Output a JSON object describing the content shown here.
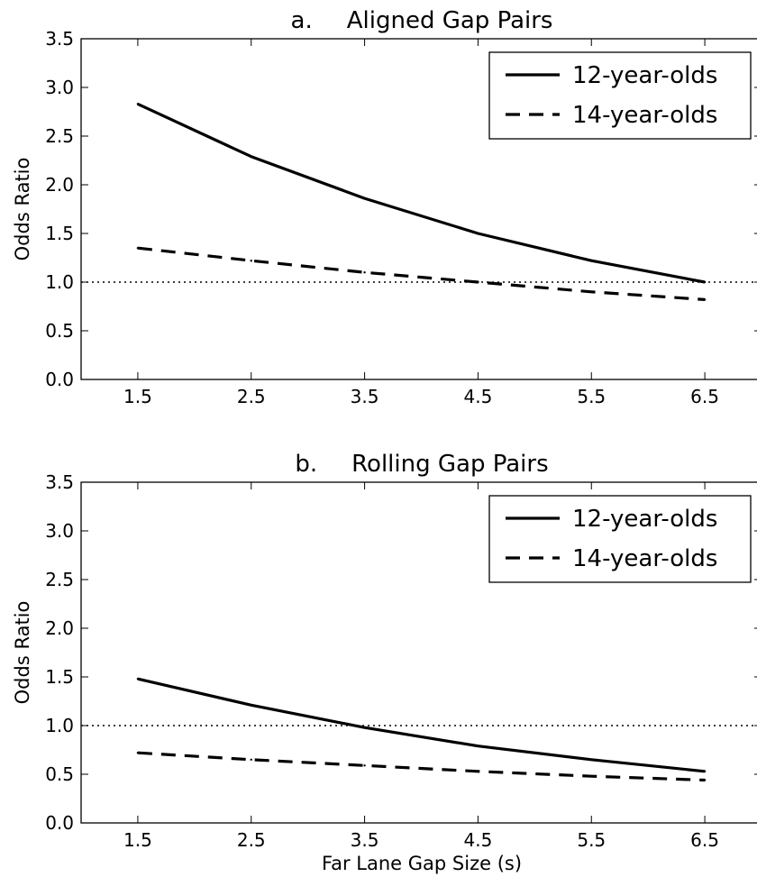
{
  "chart_data": [
    {
      "type": "line",
      "panel_letter": "a.",
      "title": "Aligned Gap Pairs",
      "xlabel": "",
      "ylabel": "Odds Ratio",
      "x": [
        1.5,
        2.5,
        3.5,
        4.5,
        5.5,
        6.5
      ],
      "xticks": [
        "1.5",
        "2.5",
        "3.5",
        "4.5",
        "5.5",
        "6.5"
      ],
      "yticks": [
        "0.0",
        "0.5",
        "1.0",
        "1.5",
        "2.0",
        "2.5",
        "3.0",
        "3.5"
      ],
      "xlim": [
        1.0,
        7.0
      ],
      "ylim": [
        0.0,
        3.5
      ],
      "reference_line": 1.0,
      "legend_position": "top-right",
      "series": [
        {
          "name": "12-year-olds",
          "style": "solid",
          "values": [
            2.83,
            2.29,
            1.86,
            1.5,
            1.22,
            1.0
          ]
        },
        {
          "name": "14-year-olds",
          "style": "dashed",
          "values": [
            1.35,
            1.22,
            1.1,
            1.0,
            0.9,
            0.82
          ]
        }
      ]
    },
    {
      "type": "line",
      "panel_letter": "b.",
      "title": "Rolling Gap Pairs",
      "xlabel": "Far Lane Gap Size (s)",
      "ylabel": "Odds Ratio",
      "x": [
        1.5,
        2.5,
        3.5,
        4.5,
        5.5,
        6.5
      ],
      "xticks": [
        "1.5",
        "2.5",
        "3.5",
        "4.5",
        "5.5",
        "6.5"
      ],
      "yticks": [
        "0.0",
        "0.5",
        "1.0",
        "1.5",
        "2.0",
        "2.5",
        "3.0",
        "3.5"
      ],
      "xlim": [
        1.0,
        7.0
      ],
      "ylim": [
        0.0,
        3.5
      ],
      "reference_line": 1.0,
      "legend_position": "top-right",
      "series": [
        {
          "name": "12-year-olds",
          "style": "solid",
          "values": [
            1.48,
            1.21,
            0.98,
            0.79,
            0.65,
            0.53
          ]
        },
        {
          "name": "14-year-olds",
          "style": "dashed",
          "values": [
            0.72,
            0.65,
            0.59,
            0.53,
            0.48,
            0.44
          ]
        }
      ]
    }
  ]
}
